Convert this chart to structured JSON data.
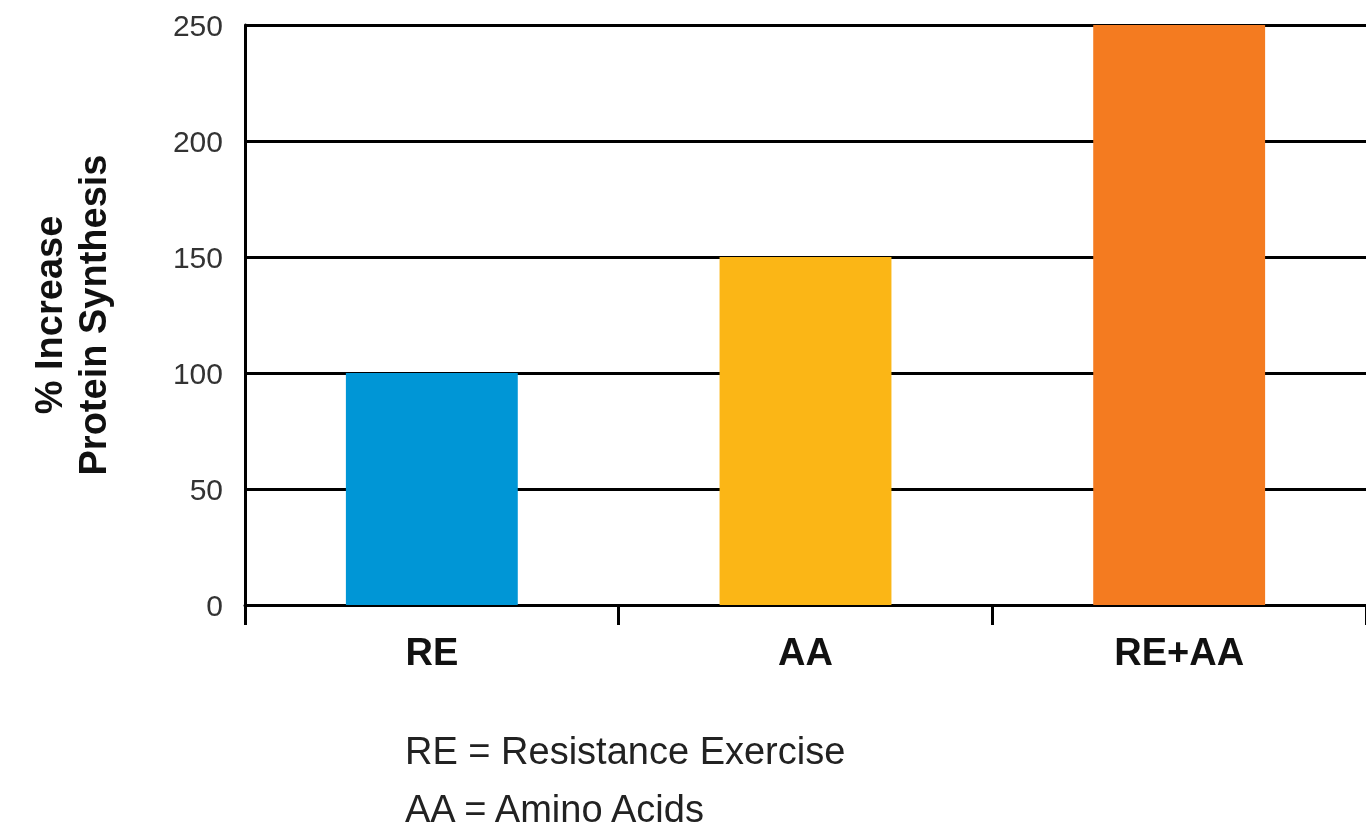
{
  "chart_data": {
    "type": "bar",
    "ylabel": "% Increase\nProtein Synthesis",
    "categories": [
      "RE",
      "AA",
      "RE+AA"
    ],
    "values": [
      100,
      150,
      250
    ],
    "colors": [
      "#0096d6",
      "#fbb616",
      "#f47b20"
    ],
    "ylim": [
      0,
      250
    ],
    "yticks": [
      0,
      50,
      100,
      150,
      200,
      250
    ],
    "grid": "y",
    "annotations": [
      "RE = Resistance Exercise",
      "AA = Amino Acids"
    ]
  }
}
